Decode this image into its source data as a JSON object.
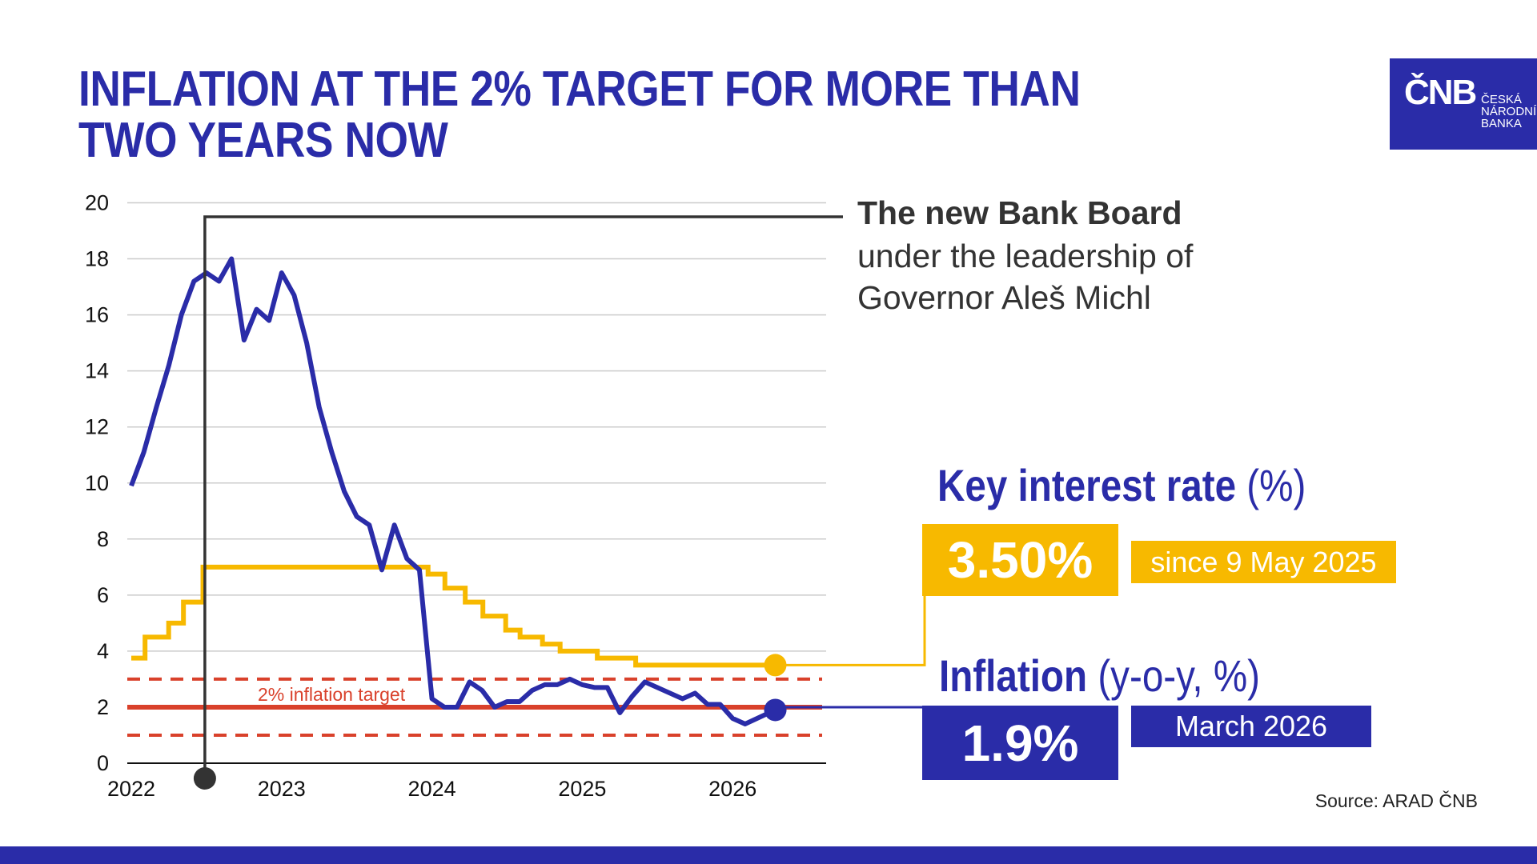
{
  "title": {
    "line1": "INFLATION AT THE 2% TARGET FOR MORE THAN",
    "line2": "TWO YEARS NOW"
  },
  "logo": {
    "mark": "ČNB",
    "line1": "ČESKÁ",
    "line2": "NÁRODNÍ",
    "line3": "BANKA"
  },
  "annotation": {
    "line1": "The new Bank Board",
    "line2": "under the leadership of",
    "line3": "Governor Aleš Michl",
    "date": "2022-07"
  },
  "key_rate": {
    "title": "Key interest rate",
    "unit": "(%)",
    "value": "3.50%",
    "since": "since 9 May 2025"
  },
  "inflation": {
    "title": "Inflation",
    "unit": "(y-o-y, %)",
    "value": "1.9%",
    "period": "March 2026"
  },
  "source": "Source: ARAD ČNB",
  "colors": {
    "inflation": "#2a2ca8",
    "key_rate": "#f7b900",
    "target": "#d9412b",
    "annotation": "#333333",
    "grid": "#cccccc"
  },
  "chart_data": {
    "type": "line",
    "ylim": [
      0,
      20
    ],
    "yticks": [
      "0",
      "2",
      "4",
      "6",
      "8",
      "10",
      "12",
      "14",
      "16",
      "18",
      "20"
    ],
    "xticks": [
      "2022",
      "2023",
      "2024",
      "2025",
      "2026"
    ],
    "grid": true,
    "target_label": "2% inflation target",
    "target": 2,
    "target_band": [
      1,
      3
    ],
    "series": [
      {
        "key": "inflation",
        "start": "2022-01",
        "frequency": "monthly",
        "values": [
          9.9,
          11.1,
          12.7,
          14.2,
          16.0,
          17.2,
          17.5,
          17.2,
          18.0,
          15.1,
          16.2,
          15.8,
          17.5,
          16.7,
          15.0,
          12.7,
          11.1,
          9.7,
          8.8,
          8.5,
          6.9,
          8.5,
          7.3,
          6.9,
          2.3,
          2.0,
          2.0,
          2.9,
          2.6,
          2.0,
          2.2,
          2.2,
          2.6,
          2.8,
          2.8,
          3.0,
          2.8,
          2.7,
          2.7,
          1.8,
          2.4,
          2.9,
          2.7,
          2.5,
          2.3,
          2.5,
          2.1,
          2.1,
          1.6,
          1.4,
          1.9
        ]
      },
      {
        "key": "key_rate",
        "type": "step",
        "steps": [
          [
            "2022-01-01",
            3.75
          ],
          [
            "2022-02-04",
            4.5
          ],
          [
            "2022-03-31",
            5.0
          ],
          [
            "2022-05-06",
            5.75
          ],
          [
            "2022-06-23",
            7.0
          ],
          [
            "2023-12-22",
            6.75
          ],
          [
            "2024-02-02",
            6.25
          ],
          [
            "2024-03-21",
            5.75
          ],
          [
            "2024-05-03",
            5.25
          ],
          [
            "2024-06-28",
            4.75
          ],
          [
            "2024-08-02",
            4.5
          ],
          [
            "2024-09-26",
            4.25
          ],
          [
            "2024-11-08",
            4.0
          ],
          [
            "2025-02-07",
            3.75
          ],
          [
            "2025-05-09",
            3.5
          ]
        ]
      }
    ]
  }
}
